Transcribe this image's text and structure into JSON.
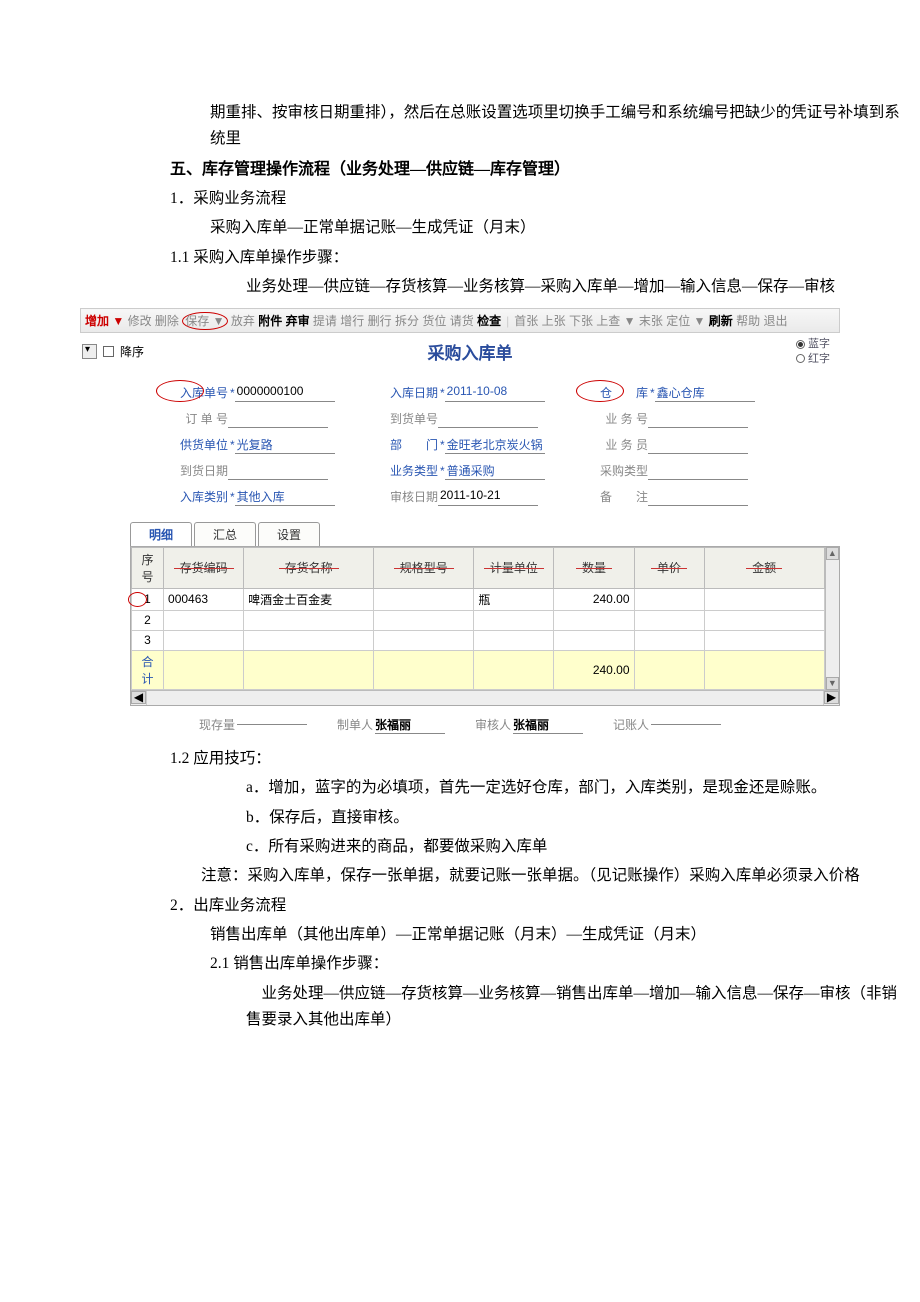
{
  "doc": {
    "top_continuation": "期重排、按审核日期重排），然后在总账设置选项里切换手工编号和系统编号把缺少的凭证号补填到系统里",
    "section5_title": "五、库存管理操作流程（业务处理—供应链—库存管理）",
    "item1": "1．采购业务流程",
    "item1_sub": "采购入库单—正常单据记账—生成凭证（月末）",
    "item1_1": "1.1  采购入库单操作步骤：",
    "item1_1_sub": "业务处理—供应链—存货核算—业务核算—采购入库单—增加—输入信息—保存—审核",
    "item1_2": "1.2  应用技巧：",
    "tip_a": "a．增加，蓝字的为必填项，首先一定选好仓库，部门，入库类别，是现金还是赊账。",
    "tip_b": "b．保存后，直接审核。",
    "tip_c": "c．所有采购进来的商品，都要做采购入库单",
    "note": "注意：采购入库单，保存一张单据，就要记账一张单据。（见记账操作）采购入库单必须录入价格",
    "item2": "2．出库业务流程",
    "item2_sub": "销售出库单（其他出库单）—正常单据记账（月末）—生成凭证（月末）",
    "item2_1": "2.1   销售出库单操作步骤：",
    "item2_1_sub": "业务处理—供应链—存货核算—业务核算—销售出库单—增加—输入信息—保存—审核（非销售要录入其他出库单）"
  },
  "toolbar": {
    "items": [
      {
        "t": "增加",
        "cls": "red",
        "dd": true
      },
      {
        "t": "修改"
      },
      {
        "t": "删除"
      },
      {
        "t": "保存",
        "circle": true,
        "dd": true
      },
      {
        "t": "放弃"
      },
      {
        "t": "附件",
        "cls": "bold"
      },
      {
        "t": "弃审",
        "cls": "bold"
      },
      {
        "t": "提请"
      },
      {
        "t": "增行"
      },
      {
        "t": "删行"
      },
      {
        "t": "拆分"
      },
      {
        "t": "货位"
      },
      {
        "t": "请货"
      },
      {
        "t": "检查",
        "cls": "bold"
      }
    ],
    "right": [
      {
        "t": "首张"
      },
      {
        "t": "上张"
      },
      {
        "t": "下张"
      },
      {
        "t": "上查",
        "dd": true
      },
      {
        "t": "末张"
      },
      {
        "t": "定位",
        "dd": true
      },
      {
        "t": "刷新",
        "cls": "bold"
      },
      {
        "t": "帮助"
      },
      {
        "t": "退出"
      }
    ],
    "order_label": "降序"
  },
  "form": {
    "title": "采购入库单",
    "radio": {
      "blue": "蓝字",
      "red": "红字"
    },
    "rows": [
      [
        {
          "l": "入库单号",
          "req": true,
          "lt": "blue",
          "v": "0000000100",
          "circle": true
        },
        {
          "l": "入库日期",
          "req": true,
          "lt": "blue",
          "v": "2011-10-08",
          "vblue": true
        },
        {
          "l": "仓　　库",
          "req": true,
          "lt": "blue",
          "v": "鑫心仓库",
          "vblue": true,
          "circle": true
        }
      ],
      [
        {
          "l": "订 单 号",
          "lt": "gray",
          "v": ""
        },
        {
          "l": "到货单号",
          "lt": "gray",
          "v": ""
        },
        {
          "l": "业 务 号",
          "lt": "gray",
          "v": ""
        }
      ],
      [
        {
          "l": "供货单位",
          "req": true,
          "lt": "blue",
          "v": "光复路",
          "vblue": true
        },
        {
          "l": "部　　门",
          "req": true,
          "lt": "blue",
          "v": "金旺老北京炭火锅",
          "vblue": true
        },
        {
          "l": "业 务 员",
          "lt": "gray",
          "v": ""
        }
      ],
      [
        {
          "l": "到货日期",
          "lt": "gray",
          "v": ""
        },
        {
          "l": "业务类型",
          "req": true,
          "lt": "blue",
          "v": "普通采购",
          "vblue": true
        },
        {
          "l": "采购类型",
          "lt": "gray",
          "v": ""
        }
      ],
      [
        {
          "l": "入库类别",
          "req": true,
          "lt": "blue",
          "v": "其他入库",
          "vblue": true
        },
        {
          "l": "审核日期",
          "lt": "gray",
          "v": "2011-10-21"
        },
        {
          "l": "备　　注",
          "lt": "gray",
          "v": ""
        }
      ]
    ]
  },
  "tabs": {
    "active": "明细",
    "others": [
      "汇总",
      "设置"
    ]
  },
  "grid": {
    "cols": [
      "序号",
      "存货编码",
      "存货名称",
      "规格型号",
      "计量单位",
      "数量",
      "单价",
      "金额"
    ],
    "rows": [
      {
        "n": "1",
        "code": "000463",
        "name": "啤酒金士百金麦",
        "spec": "",
        "unit": "瓶",
        "qty": "240.00",
        "price": "",
        "amt": ""
      },
      {
        "n": "2"
      },
      {
        "n": "3"
      }
    ],
    "total_label": "合计",
    "total_qty": "240.00"
  },
  "footer": {
    "stock": "现存量",
    "maker": "制单人",
    "maker_v": "张福丽",
    "checker": "审核人",
    "checker_v": "张福丽",
    "book": "记账人",
    "book_v": ""
  }
}
